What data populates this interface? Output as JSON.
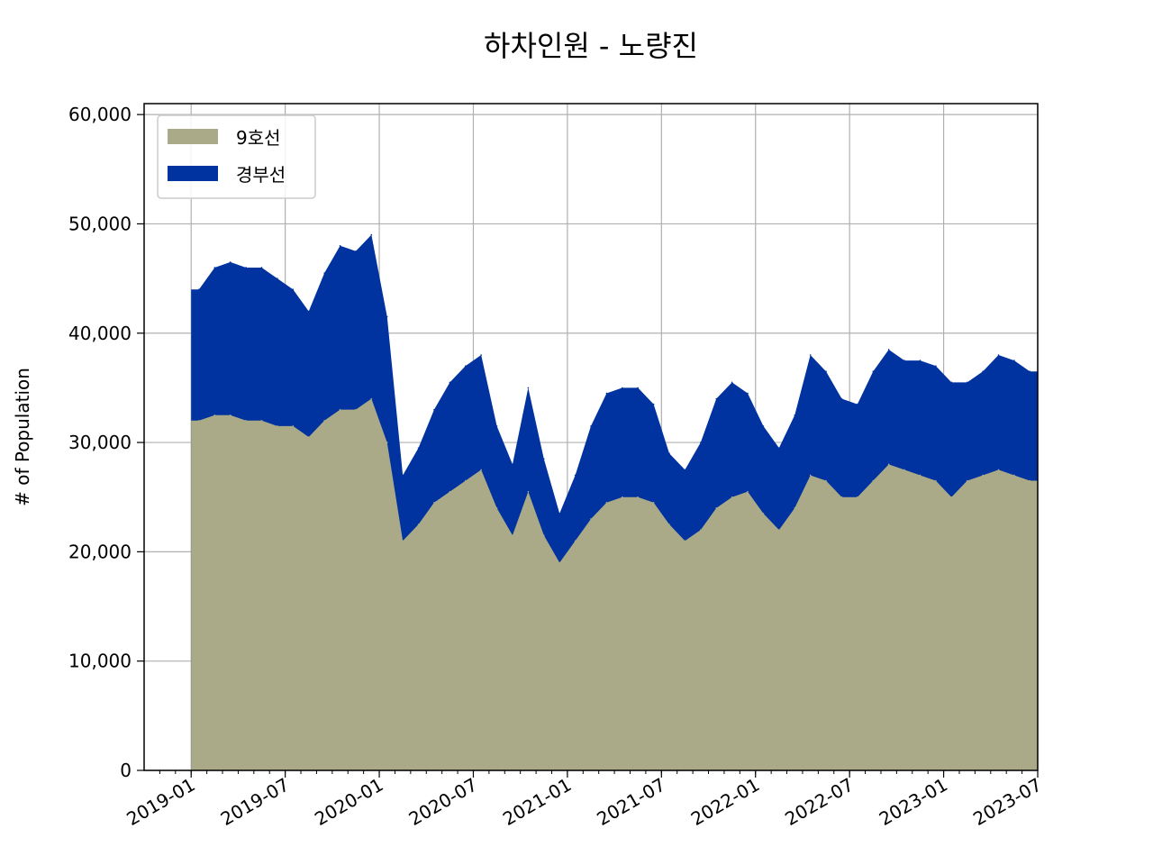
{
  "chart_data": {
    "type": "area",
    "stacked": true,
    "title": "하차인원 - 노량진",
    "xlabel": "",
    "ylabel": "# of Population",
    "ylim": [
      0,
      61000
    ],
    "y_ticks": [
      0,
      10000,
      20000,
      30000,
      40000,
      50000,
      60000
    ],
    "y_tick_labels": [
      "0",
      "10,000",
      "20,000",
      "30,000",
      "40,000",
      "50,000",
      "60,000"
    ],
    "x_tick_labels": [
      "2019-01",
      "2019-07",
      "2020-01",
      "2020-07",
      "2021-01",
      "2021-07",
      "2022-01",
      "2022-07",
      "2023-01",
      "2023-07"
    ],
    "x_range": [
      "2018-10",
      "2023-07"
    ],
    "grid": true,
    "legend_position": "top-left",
    "x_months": [
      "2019-01",
      "2019-02",
      "2019-03",
      "2019-04",
      "2019-05",
      "2019-06",
      "2019-07",
      "2019-08",
      "2019-09",
      "2019-10",
      "2019-11",
      "2019-12",
      "2020-01",
      "2020-02",
      "2020-03",
      "2020-04",
      "2020-05",
      "2020-06",
      "2020-07",
      "2020-08",
      "2020-09",
      "2020-10",
      "2020-11",
      "2020-12",
      "2021-01",
      "2021-02",
      "2021-03",
      "2021-04",
      "2021-05",
      "2021-06",
      "2021-07",
      "2021-08",
      "2021-09",
      "2021-10",
      "2021-11",
      "2021-12",
      "2022-01",
      "2022-02",
      "2022-03",
      "2022-04",
      "2022-05",
      "2022-06",
      "2022-07",
      "2022-08",
      "2022-09",
      "2022-10",
      "2022-11",
      "2022-12",
      "2023-01",
      "2023-02",
      "2023-03",
      "2023-04",
      "2023-05",
      "2023-06"
    ],
    "series": [
      {
        "name": "9호선",
        "color": "#aaaa88",
        "values": [
          32000,
          32500,
          32500,
          32000,
          32000,
          31500,
          31500,
          30500,
          32000,
          33000,
          33000,
          34000,
          30000,
          21000,
          22500,
          24500,
          25500,
          26500,
          27500,
          24000,
          21500,
          25500,
          21500,
          19000,
          21000,
          23000,
          24500,
          25000,
          25000,
          24500,
          22500,
          21000,
          22000,
          24000,
          25000,
          25500,
          23500,
          22000,
          24000,
          27000,
          26500,
          25000,
          25000,
          26500,
          28000,
          27500,
          27000,
          26500,
          25000,
          26500,
          27000,
          27500,
          27000,
          26500
        ]
      },
      {
        "name": "경부선",
        "color": "#0033a0",
        "values": [
          12000,
          13500,
          14000,
          14000,
          14000,
          13500,
          12500,
          11500,
          13500,
          15000,
          14500,
          15000,
          11500,
          6000,
          7000,
          8500,
          10000,
          10500,
          10500,
          7500,
          6500,
          9500,
          7000,
          4500,
          6000,
          8500,
          10000,
          10000,
          10000,
          9000,
          6500,
          6500,
          8000,
          10000,
          10500,
          9000,
          8000,
          7500,
          8500,
          11000,
          10000,
          9000,
          8500,
          10000,
          10500,
          10000,
          10500,
          10500,
          10500,
          9000,
          9500,
          10500,
          10500,
          10000
        ]
      }
    ]
  }
}
